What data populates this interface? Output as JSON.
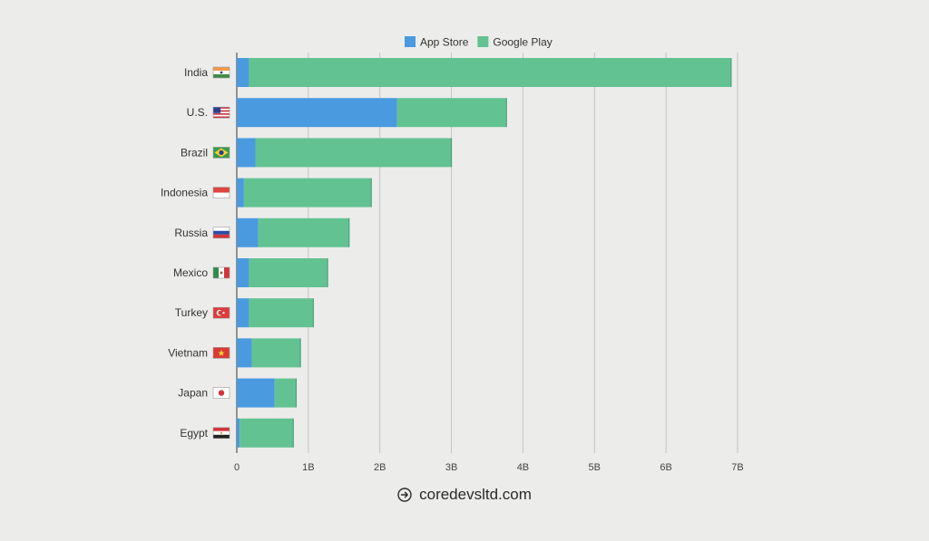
{
  "chart_data": {
    "type": "bar",
    "orientation": "horizontal",
    "stacked": true,
    "categories": [
      "India",
      "U.S.",
      "Brazil",
      "Indonesia",
      "Russia",
      "Mexico",
      "Turkey",
      "Vietnam",
      "Japan",
      "Egypt"
    ],
    "series": [
      {
        "name": "App Store",
        "color": "#4a9ae0",
        "values": [
          0.17,
          2.24,
          0.26,
          0.1,
          0.3,
          0.17,
          0.17,
          0.21,
          0.53,
          0.04
        ]
      },
      {
        "name": "Google Play",
        "color": "#63c291",
        "values": [
          6.74,
          1.53,
          2.74,
          1.78,
          1.27,
          1.1,
          0.9,
          0.68,
          0.3,
          0.75
        ]
      }
    ],
    "xticks": [
      "0",
      "1B",
      "2B",
      "3B",
      "4B",
      "5B",
      "6B",
      "7B"
    ],
    "xlim": [
      0,
      7
    ],
    "grid": true,
    "legend_position": "top-center",
    "flag_icons": [
      "india-flag-icon",
      "us-flag-icon",
      "brazil-flag-icon",
      "indonesia-flag-icon",
      "russia-flag-icon",
      "mexico-flag-icon",
      "turkey-flag-icon",
      "vietnam-flag-icon",
      "japan-flag-icon",
      "egypt-flag-icon"
    ]
  },
  "footer": {
    "icon": "arrow-right-circle-icon",
    "text": "coredevsltd.com"
  }
}
